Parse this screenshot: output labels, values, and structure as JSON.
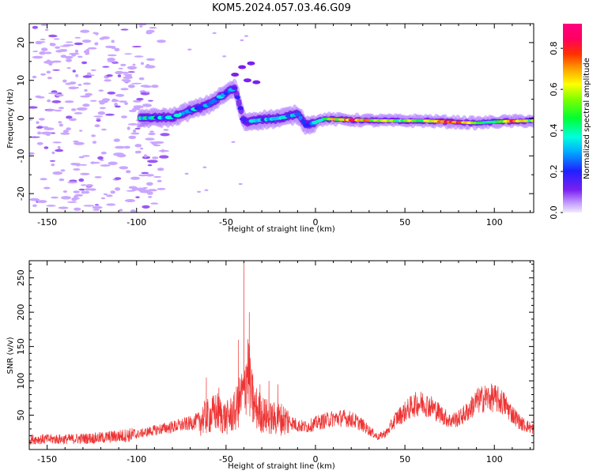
{
  "figure_title": "KOM5.2024.057.03.46.G09",
  "colors": {
    "snr_line": "#ee3333",
    "frame": "#000000",
    "weak_blob": "#c9a6ff"
  },
  "chart_data": [
    {
      "type": "heatmap",
      "title": "KOM5.2024.057.03.46.G09",
      "xlabel": "Height of straight line (km)",
      "ylabel": "Frequency (Hz)",
      "xlim": [
        -160,
        122
      ],
      "ylim": [
        -25,
        25
      ],
      "xticks": [
        -150,
        -100,
        -50,
        0,
        50,
        100
      ],
      "yticks": [
        -20,
        -10,
        0,
        10,
        20
      ],
      "colorbar": {
        "label": "Normalized spectral amplitude",
        "range": [
          0.0,
          0.92
        ],
        "ticks": [
          "0.0",
          "0.2",
          "0.4",
          "0.6",
          "0.8"
        ],
        "colormap": "rainbow (purple to red)"
      },
      "signal_track": [
        {
          "x": -95,
          "y": 0,
          "amp": 0.35
        },
        {
          "x": -80,
          "y": 0.2,
          "amp": 0.3
        },
        {
          "x": -70,
          "y": 2,
          "amp": 0.3
        },
        {
          "x": -60,
          "y": 3.5,
          "amp": 0.3
        },
        {
          "x": -52,
          "y": 6,
          "amp": 0.28
        },
        {
          "x": -45,
          "y": 8,
          "amp": 0.2
        },
        {
          "x": -40,
          "y": -1,
          "amp": 0.25
        },
        {
          "x": -30,
          "y": -0.5,
          "amp": 0.3
        },
        {
          "x": -20,
          "y": 0,
          "amp": 0.3
        },
        {
          "x": -10,
          "y": 1,
          "amp": 0.3
        },
        {
          "x": -5,
          "y": -2,
          "amp": 0.25
        },
        {
          "x": 5,
          "y": -0.2,
          "amp": 0.55
        },
        {
          "x": 20,
          "y": -0.5,
          "amp": 0.8
        },
        {
          "x": 40,
          "y": -0.7,
          "amp": 0.55
        },
        {
          "x": 60,
          "y": -0.7,
          "amp": 0.55
        },
        {
          "x": 75,
          "y": -1,
          "amp": 0.9
        },
        {
          "x": 90,
          "y": -1.3,
          "amp": 0.5
        },
        {
          "x": 100,
          "y": -1,
          "amp": 0.4
        },
        {
          "x": 110,
          "y": -0.8,
          "amp": 0.85
        },
        {
          "x": 122,
          "y": -0.7,
          "amp": 0.5
        }
      ]
    },
    {
      "type": "line",
      "xlabel": "Height of straight line (km)",
      "ylabel": "SNR (v/v)",
      "xlim": [
        -160,
        122
      ],
      "ylim": [
        0,
        275
      ],
      "xticks": [
        -150,
        -100,
        -50,
        0,
        50,
        100
      ],
      "yticks": [
        50,
        100,
        150,
        200,
        250
      ],
      "series": [
        {
          "x": [
            -160,
            -140,
            -120,
            -100,
            -90,
            -80,
            -70,
            -60,
            -55,
            -50,
            -45,
            -40,
            -38,
            -35,
            -30,
            -25,
            -20,
            -15,
            -10,
            -5,
            0,
            5,
            10,
            15,
            20,
            25,
            30,
            35,
            40,
            45,
            50,
            55,
            60,
            65,
            70,
            75,
            80,
            85,
            90,
            95,
            100,
            105,
            110,
            115,
            122
          ],
          "values": [
            15,
            15,
            17,
            22,
            28,
            33,
            38,
            48,
            55,
            45,
            55,
            85,
            120,
            65,
            52,
            45,
            45,
            42,
            35,
            33,
            38,
            42,
            45,
            46,
            44,
            38,
            28,
            18,
            25,
            45,
            55,
            65,
            68,
            62,
            52,
            42,
            45,
            55,
            70,
            75,
            75,
            68,
            52,
            38,
            30
          ],
          "peaks": [
            {
              "x": -61,
              "y": 105
            },
            {
              "x": -54,
              "y": 90
            },
            {
              "x": -43,
              "y": 160
            },
            {
              "x": -40,
              "y": 275
            },
            {
              "x": -37,
              "y": 200
            },
            {
              "x": -35,
              "y": 110
            },
            {
              "x": -31,
              "y": 95
            },
            {
              "x": -26,
              "y": 100
            },
            {
              "x": -21,
              "y": 95
            }
          ]
        }
      ]
    }
  ]
}
